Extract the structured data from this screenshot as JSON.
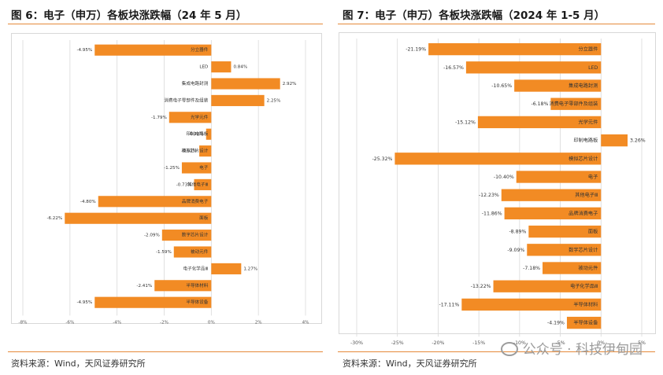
{
  "colors": {
    "bar": "#F28B24",
    "accent_rule": "#E58A3A",
    "grid": "#D9D9D9",
    "text": "#222222"
  },
  "left": {
    "title": "图 6：电子（申万）各板块涨跌幅（24 年 5 月）",
    "source": "资料来源：Wind，天风证券研究所"
  },
  "right": {
    "title": "图 7：电子（申万）各板块涨跌幅（2024 年 1-5 月）",
    "source": "资料来源：Wind，天风证券研究所"
  },
  "watermark": {
    "text": "公众号 · 科技伊甸园",
    "icon": "wechat-icon"
  },
  "chart_data": [
    {
      "type": "bar",
      "orientation": "horizontal",
      "title": "图 6：电子（申万）各板块涨跌幅（24 年 5 月）",
      "xlim": [
        -8,
        4
      ],
      "x_ticks": [
        "-8%",
        "-6%",
        "-4%",
        "-2%",
        "0%",
        "2%",
        "4%"
      ],
      "x_tick_values": [
        -8,
        -6,
        -4,
        -2,
        0,
        2,
        4
      ],
      "grid": true,
      "categories": [
        "分立器件",
        "LED",
        "集成电路封测",
        "消费电子零部件及组装",
        "光学元件",
        "印制电路板",
        "模拟芯片设计",
        "电子",
        "其他电子Ⅲ",
        "品牌消费电子",
        "面板",
        "数字芯片设计",
        "被动元件",
        "电子化学品Ⅲ",
        "半导体材料",
        "半导体设备"
      ],
      "values": [
        -4.95,
        0.84,
        2.92,
        2.25,
        -1.79,
        -0.22,
        -0.51,
        -1.25,
        -0.73,
        -4.8,
        -6.22,
        -2.09,
        -1.59,
        1.27,
        -2.41,
        -4.95
      ],
      "value_labels": [
        "-4.95%",
        "0.84%",
        "2.92%",
        "2.25%",
        "-1.79%",
        "-0.22%",
        "-0.51%",
        "-1.25%",
        "-0.73%",
        "-4.80%",
        "-6.22%",
        "-2.09%",
        "-1.59%",
        "1.27%",
        "-2.41%",
        "-4.95%"
      ]
    },
    {
      "type": "bar",
      "orientation": "horizontal",
      "title": "图 7：电子（申万）各板块涨跌幅（2024 年 1-5 月）",
      "xlim": [
        -30,
        5
      ],
      "x_ticks": [
        "-30%",
        "-25%",
        "-20%",
        "-15%",
        "-10%",
        "-5%",
        "0%",
        "5%"
      ],
      "x_tick_values": [
        -30,
        -25,
        -20,
        -15,
        -10,
        -5,
        0,
        5
      ],
      "grid": true,
      "categories": [
        "分立器件",
        "LED",
        "集成电路封测",
        "消费电子零部件及组装",
        "光学元件",
        "印制电路板",
        "模拟芯片设计",
        "电子",
        "其他电子Ⅲ",
        "品牌消费电子",
        "面板",
        "数字芯片设计",
        "被动元件",
        "电子化学品Ⅲ",
        "半导体材料",
        "半导体设备"
      ],
      "values": [
        -21.19,
        -16.57,
        -10.65,
        -6.18,
        -15.12,
        3.26,
        -25.32,
        -10.4,
        -12.23,
        -11.86,
        -8.89,
        -9.09,
        -7.18,
        -13.22,
        -17.11,
        -4.19
      ],
      "value_labels": [
        "-21.19%",
        "-16.57%",
        "-10.65%",
        "-6.18%",
        "-15.12%",
        "3.26%",
        "-25.32%",
        "-10.40%",
        "-12.23%",
        "-11.86%",
        "-8.89%",
        "-9.09%",
        "-7.18%",
        "-13.22%",
        "-17.11%",
        "-4.19%"
      ]
    }
  ]
}
